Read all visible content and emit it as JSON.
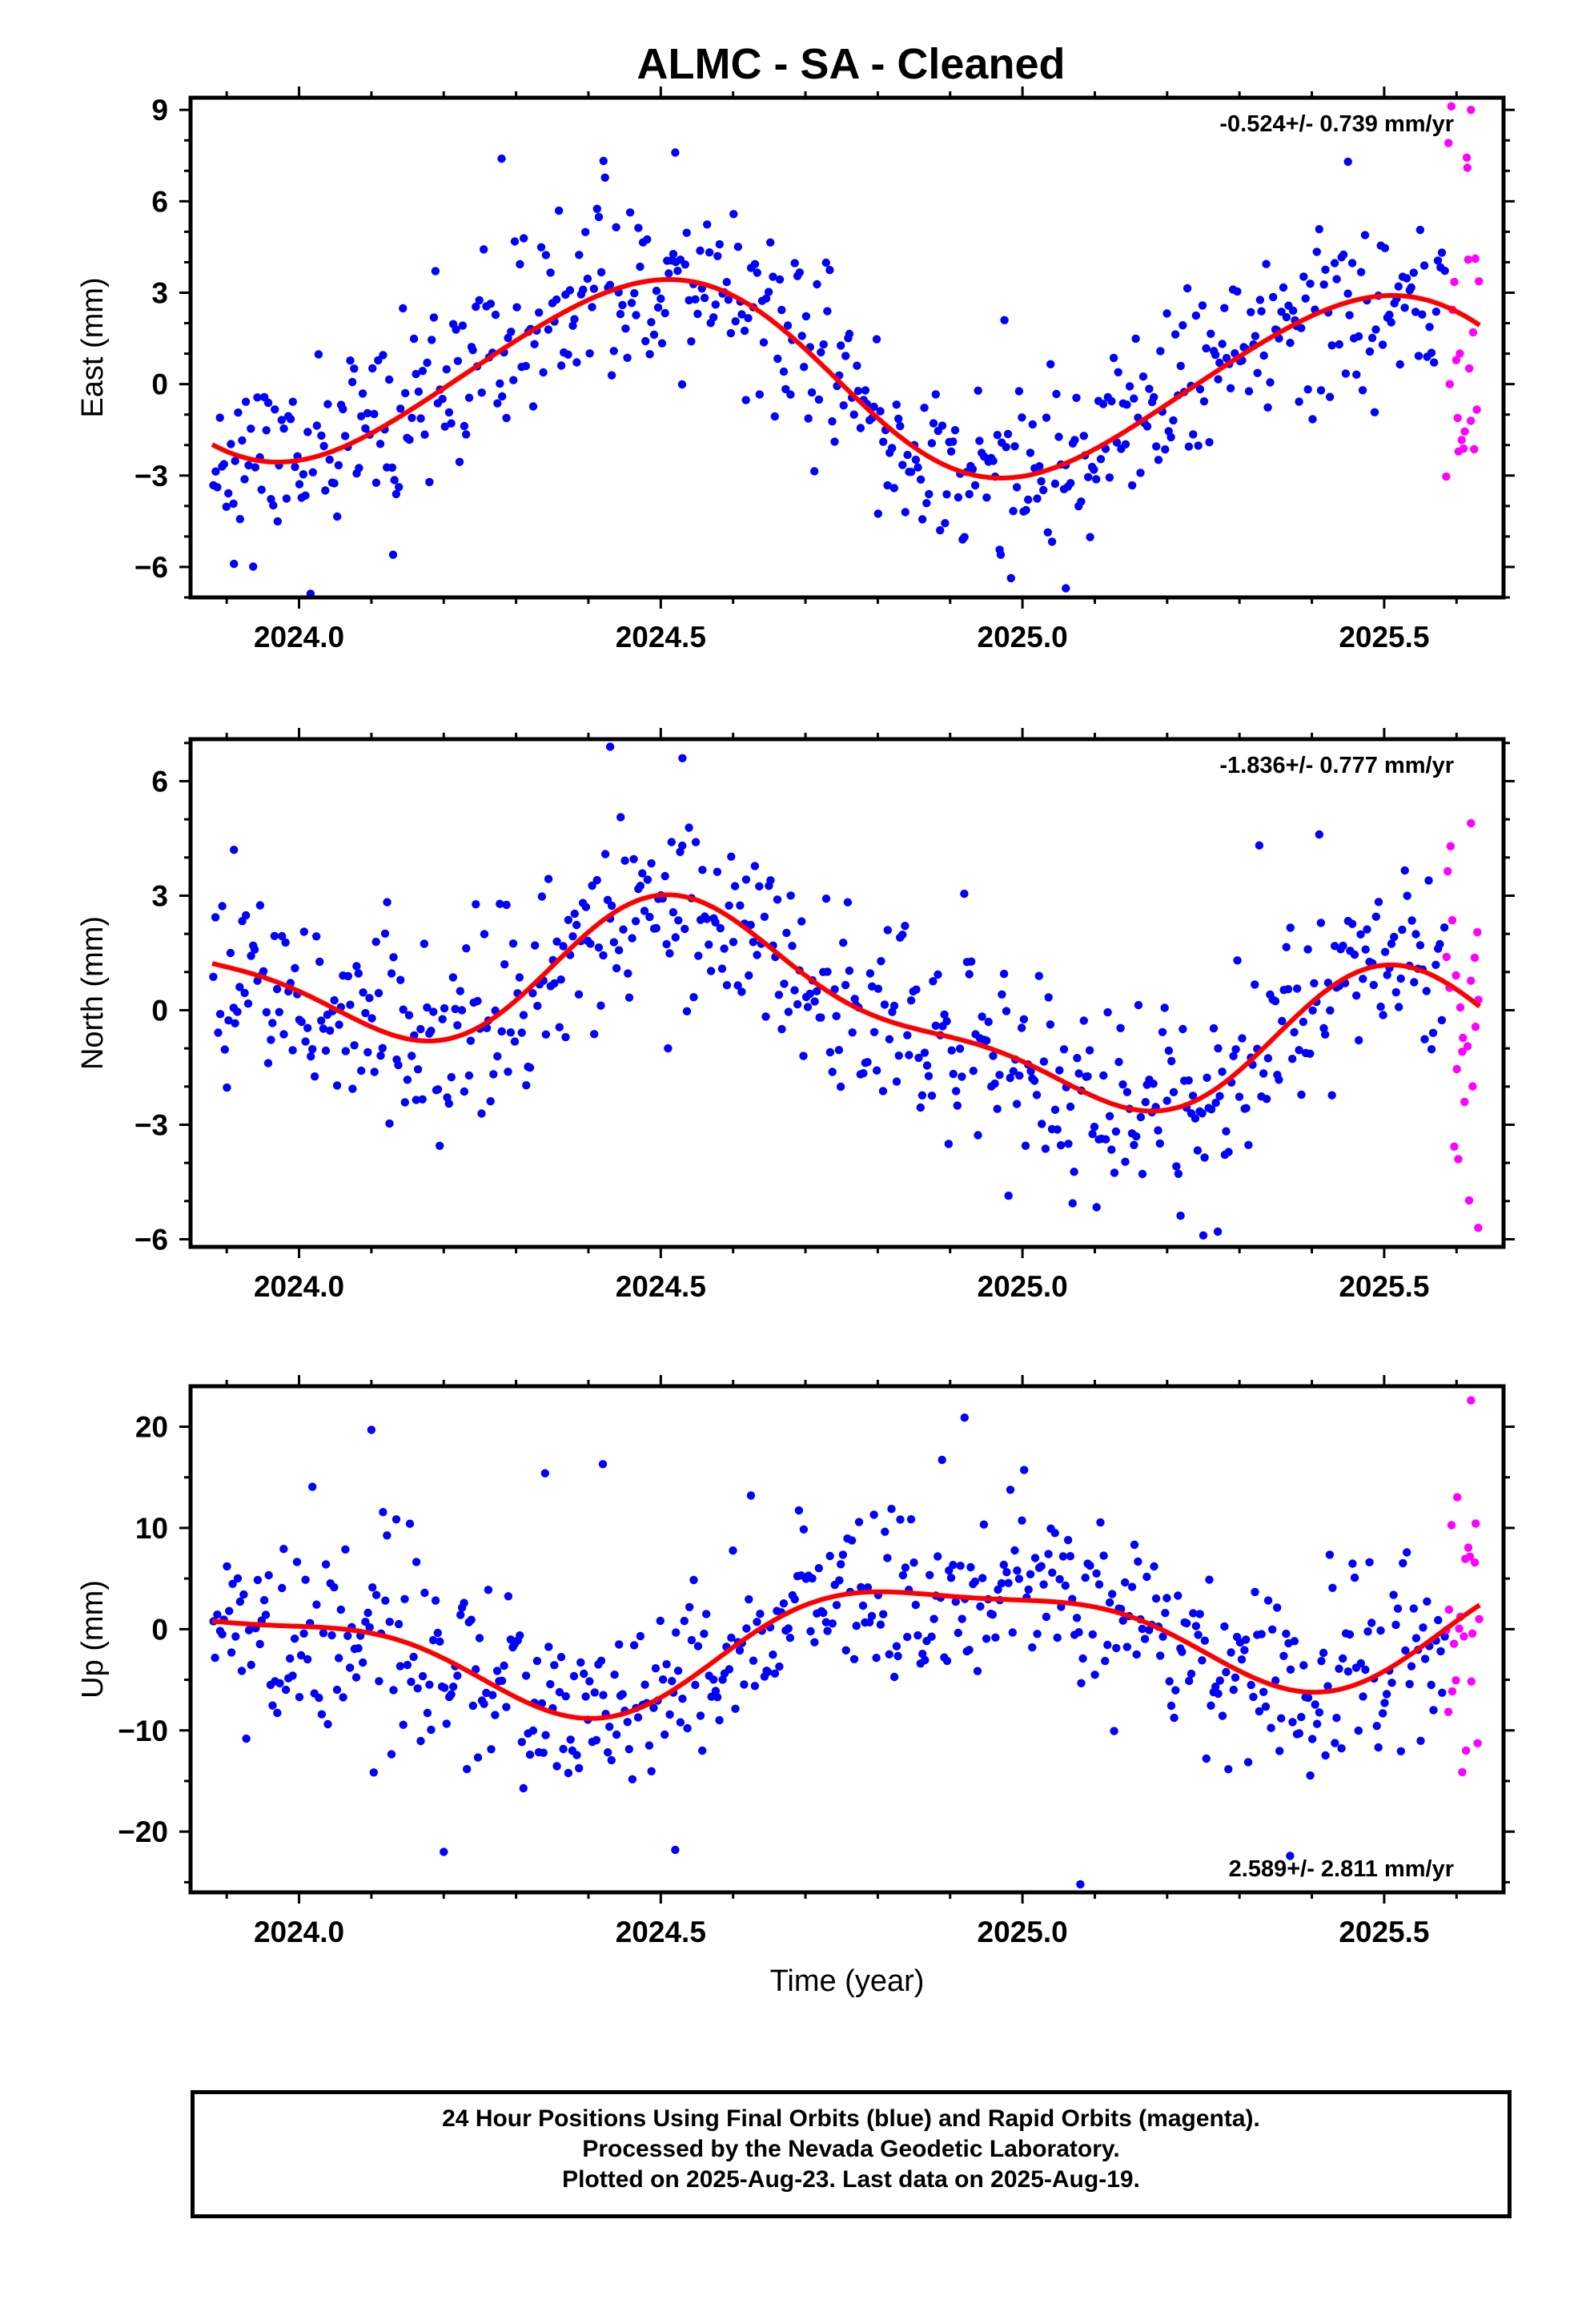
{
  "title": "ALMC  - SA - Cleaned",
  "footer": {
    "line1": "24 Hour Positions Using Final Orbits (blue) and Rapid Orbits (magenta).",
    "line2": "Processed by the Nevada Geodetic Laboratory.",
    "line3": "Plotted on 2025-Aug-23. Last data on 2025-Aug-19."
  },
  "colors": {
    "final": "#0000ff",
    "rapid": "#ff00ff",
    "fit": "#ff0000",
    "frame": "#000000"
  },
  "chart_data": [
    {
      "type": "scatter",
      "panel": "east",
      "title": "ALMC  - SA - Cleaned",
      "ylabel": "East (mm)",
      "xlabel": "",
      "xlim": [
        2023.85,
        2025.665
      ],
      "ylim": [
        -7,
        9.4
      ],
      "yticks": [
        -6,
        -3,
        0,
        3,
        6,
        9
      ],
      "ytick_labels": [
        "−6",
        "−3",
        "0",
        "3",
        "6",
        "9"
      ],
      "xticks": [
        2024.0,
        2024.5,
        2025.0,
        2025.5
      ],
      "xtick_labels": [
        "2024.0",
        "2024.5",
        "2025.0",
        "2025.5"
      ],
      "rate": "-0.524+/- 0.739 mm/yr",
      "rate_position": "top-right",
      "model": {
        "offset": 0.2,
        "trend": -0.524,
        "t0": 2024.75,
        "a1": 3.1,
        "f1": 1.0,
        "p1": 2024.24,
        "a2": 0.25,
        "f2": 2.0,
        "p2": 2024.0
      },
      "series": [
        {
          "role": "final",
          "color": "#0000ff",
          "x_start": 2023.88,
          "x_end": 2025.585,
          "count": 560,
          "scatter": 1.5,
          "seed": 11
        },
        {
          "role": "rapid",
          "color": "#ff00ff",
          "x_start": 2025.585,
          "x_end": 2025.632,
          "count": 22,
          "scatter": 2.8,
          "seed": 12
        }
      ],
      "outliers": [
        {
          "x": 2024.28,
          "y": 7.4
        },
        {
          "x": 2024.52,
          "y": 7.6
        },
        {
          "x": 2024.97,
          "y": -5.6
        },
        {
          "x": 2025.06,
          "y": -6.7
        },
        {
          "x": 2025.45,
          "y": 7.3
        },
        {
          "x": 2025.62,
          "y": 9.0
        },
        {
          "x": 2025.615,
          "y": 7.1
        },
        {
          "x": 2024.13,
          "y": -5.6
        },
        {
          "x": 2023.91,
          "y": -5.9
        }
      ]
    },
    {
      "type": "scatter",
      "panel": "north",
      "ylabel": "North (mm)",
      "xlabel": "",
      "xlim": [
        2023.85,
        2025.665
      ],
      "ylim": [
        -6.2,
        7.1
      ],
      "yticks": [
        -6,
        -3,
        0,
        3,
        6
      ],
      "ytick_labels": [
        "−6",
        "−3",
        "0",
        "3",
        "6"
      ],
      "xticks": [
        2024.0,
        2024.5,
        2025.0,
        2025.5
      ],
      "xtick_labels": [
        "2024.0",
        "2024.5",
        "2025.0",
        "2025.5"
      ],
      "rate": "-1.836+/- 0.777 mm/yr",
      "rate_position": "top-right",
      "model": {
        "offset": 0.15,
        "trend": -1.836,
        "t0": 2024.75,
        "a1": 1.9,
        "f1": 1.0,
        "p1": 2024.32,
        "a2": 0.7,
        "f2": 2.0,
        "p2": 2024.36
      },
      "series": [
        {
          "role": "final",
          "color": "#0000ff",
          "x_start": 2023.88,
          "x_end": 2025.585,
          "count": 560,
          "scatter": 1.3,
          "seed": 21
        },
        {
          "role": "rapid",
          "color": "#ff00ff",
          "x_start": 2025.585,
          "x_end": 2025.632,
          "count": 22,
          "scatter": 2.6,
          "seed": 22
        }
      ],
      "outliers": [
        {
          "x": 2024.43,
          "y": 6.9
        },
        {
          "x": 2024.53,
          "y": 6.6
        },
        {
          "x": 2024.51,
          "y": -1.0
        },
        {
          "x": 2025.27,
          "y": -5.8
        },
        {
          "x": 2025.25,
          "y": -5.9
        },
        {
          "x": 2025.63,
          "y": -5.7
        },
        {
          "x": 2025.62,
          "y": 4.9
        },
        {
          "x": 2023.91,
          "y": 4.2
        }
      ]
    },
    {
      "type": "scatter",
      "panel": "up",
      "ylabel": "Up (mm)",
      "xlabel": "Time (year)",
      "xlim": [
        2023.85,
        2025.665
      ],
      "ylim": [
        -26,
        24
      ],
      "yticks": [
        -20,
        -10,
        0,
        10,
        20
      ],
      "ytick_labels": [
        "−20",
        "−10",
        "0",
        "10",
        "20"
      ],
      "xticks": [
        2024.0,
        2024.5,
        2025.0,
        2025.5
      ],
      "xtick_labels": [
        "2024.0",
        "2024.5",
        "2025.0",
        "2025.5"
      ],
      "rate": "2.589+/- 2.811 mm/yr",
      "rate_position": "bottom-right",
      "model": {
        "offset": -1.0,
        "trend": 2.589,
        "t0": 2024.75,
        "a1": 5.4,
        "f1": 1.0,
        "p1": 2024.64,
        "a2": 1.6,
        "f2": 2.0,
        "p2": 2024.05
      },
      "series": [
        {
          "role": "final",
          "color": "#0000ff",
          "x_start": 2023.88,
          "x_end": 2025.585,
          "count": 560,
          "scatter": 4.8,
          "seed": 31
        },
        {
          "role": "rapid",
          "color": "#ff00ff",
          "x_start": 2025.585,
          "x_end": 2025.632,
          "count": 22,
          "scatter": 8.0,
          "seed": 32
        }
      ],
      "outliers": [
        {
          "x": 2024.1,
          "y": 19.7
        },
        {
          "x": 2024.92,
          "y": 20.9
        },
        {
          "x": 2025.08,
          "y": -25.2
        },
        {
          "x": 2025.37,
          "y": -22.4
        },
        {
          "x": 2024.2,
          "y": -22.0
        },
        {
          "x": 2024.52,
          "y": -21.8
        },
        {
          "x": 2025.62,
          "y": 22.6
        },
        {
          "x": 2024.42,
          "y": 16.3
        },
        {
          "x": 2024.34,
          "y": 15.4
        }
      ]
    }
  ]
}
